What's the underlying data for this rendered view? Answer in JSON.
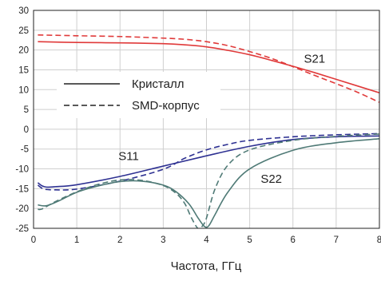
{
  "chart_data": {
    "type": "line",
    "xlabel": "Частота, ГГц",
    "ylabel": "",
    "xlim": [
      0,
      8
    ],
    "ylim": [
      -25,
      30
    ],
    "xticks": [
      "0",
      "1",
      "2",
      "3",
      "4",
      "5",
      "6",
      "7",
      "8"
    ],
    "yticks": [
      "-25",
      "-20",
      "-15",
      "-10",
      "-5",
      "0",
      "5",
      "10",
      "15",
      "20",
      "25",
      "30"
    ],
    "grid": true,
    "legend": {
      "position": "center-left",
      "entries": [
        {
          "label": "Кристалл",
          "style": "solid"
        },
        {
          "label": "SMD-корпус",
          "style": "dashed"
        }
      ]
    },
    "annotations": [
      {
        "text": "S21",
        "x": 6.5,
        "y": 16.8
      },
      {
        "text": "S11",
        "x": 2.2,
        "y": -7.8
      },
      {
        "text": "S22",
        "x": 5.5,
        "y": -13.5
      }
    ],
    "series": [
      {
        "group": "S21",
        "style": "solid",
        "color": "#e03a3a",
        "x": [
          0.1,
          1,
          2,
          3,
          3.5,
          4,
          4.5,
          5,
          5.5,
          6,
          6.5,
          7,
          7.5,
          8
        ],
        "y": [
          22.1,
          21.9,
          21.8,
          21.6,
          21.3,
          20.8,
          19.9,
          18.8,
          17.4,
          15.9,
          14.3,
          12.6,
          10.9,
          9.2
        ]
      },
      {
        "group": "S21",
        "style": "dashed",
        "color": "#e03a3a",
        "x": [
          0.1,
          1,
          2,
          3,
          3.5,
          4,
          4.5,
          5,
          5.5,
          6,
          6.5,
          7,
          7.5,
          8
        ],
        "y": [
          23.8,
          23.6,
          23.4,
          23.0,
          22.7,
          22.1,
          21.1,
          19.6,
          17.9,
          15.8,
          13.6,
          11.5,
          9.3,
          6.8
        ]
      },
      {
        "group": "S11",
        "style": "solid",
        "color": "#2e3192",
        "x": [
          0.1,
          0.2,
          0.3,
          0.5,
          1,
          2,
          3,
          4,
          5,
          6,
          7,
          8
        ],
        "y": [
          -13.5,
          -14.3,
          -14.6,
          -14.5,
          -14.0,
          -11.9,
          -9.3,
          -6.7,
          -4.3,
          -2.6,
          -1.9,
          -1.7
        ]
      },
      {
        "group": "S11",
        "style": "dashed",
        "color": "#2e3192",
        "x": [
          0.1,
          0.2,
          0.3,
          0.5,
          1,
          2,
          3,
          3.5,
          4,
          4.5,
          5,
          6,
          7,
          8
        ],
        "y": [
          -14.1,
          -14.9,
          -15.2,
          -15.3,
          -15.1,
          -13.1,
          -10.1,
          -7.3,
          -5.2,
          -3.8,
          -2.8,
          -1.9,
          -1.4,
          -1.1
        ]
      },
      {
        "group": "S22",
        "style": "solid",
        "color": "#4f7a76",
        "x": [
          0.1,
          0.3,
          0.6,
          1,
          1.5,
          2,
          2.5,
          3,
          3.3,
          3.6,
          3.8,
          3.95,
          4.05,
          4.2,
          4.5,
          5,
          6,
          7,
          8
        ],
        "y": [
          -19.1,
          -19.3,
          -18.0,
          -15.9,
          -14.3,
          -13.2,
          -13.1,
          -14.1,
          -15.8,
          -18.9,
          -22.3,
          -24.5,
          -24.4,
          -21.5,
          -15.8,
          -10.0,
          -5.3,
          -3.4,
          -2.4
        ]
      },
      {
        "group": "S22",
        "style": "dashed",
        "color": "#4f7a76",
        "x": [
          0.1,
          0.2,
          0.5,
          1,
          1.5,
          2,
          2.5,
          3,
          3.3,
          3.5,
          3.65,
          3.8,
          3.9,
          4.0,
          4.2,
          4.5,
          5,
          6,
          7,
          8
        ],
        "y": [
          -20.2,
          -20.1,
          -18.3,
          -15.8,
          -13.9,
          -12.8,
          -12.9,
          -14.2,
          -16.2,
          -18.8,
          -22.3,
          -25.0,
          -24.5,
          -22.4,
          -15.0,
          -9.0,
          -5.2,
          -2.8,
          -1.8,
          -1.2
        ]
      }
    ]
  }
}
